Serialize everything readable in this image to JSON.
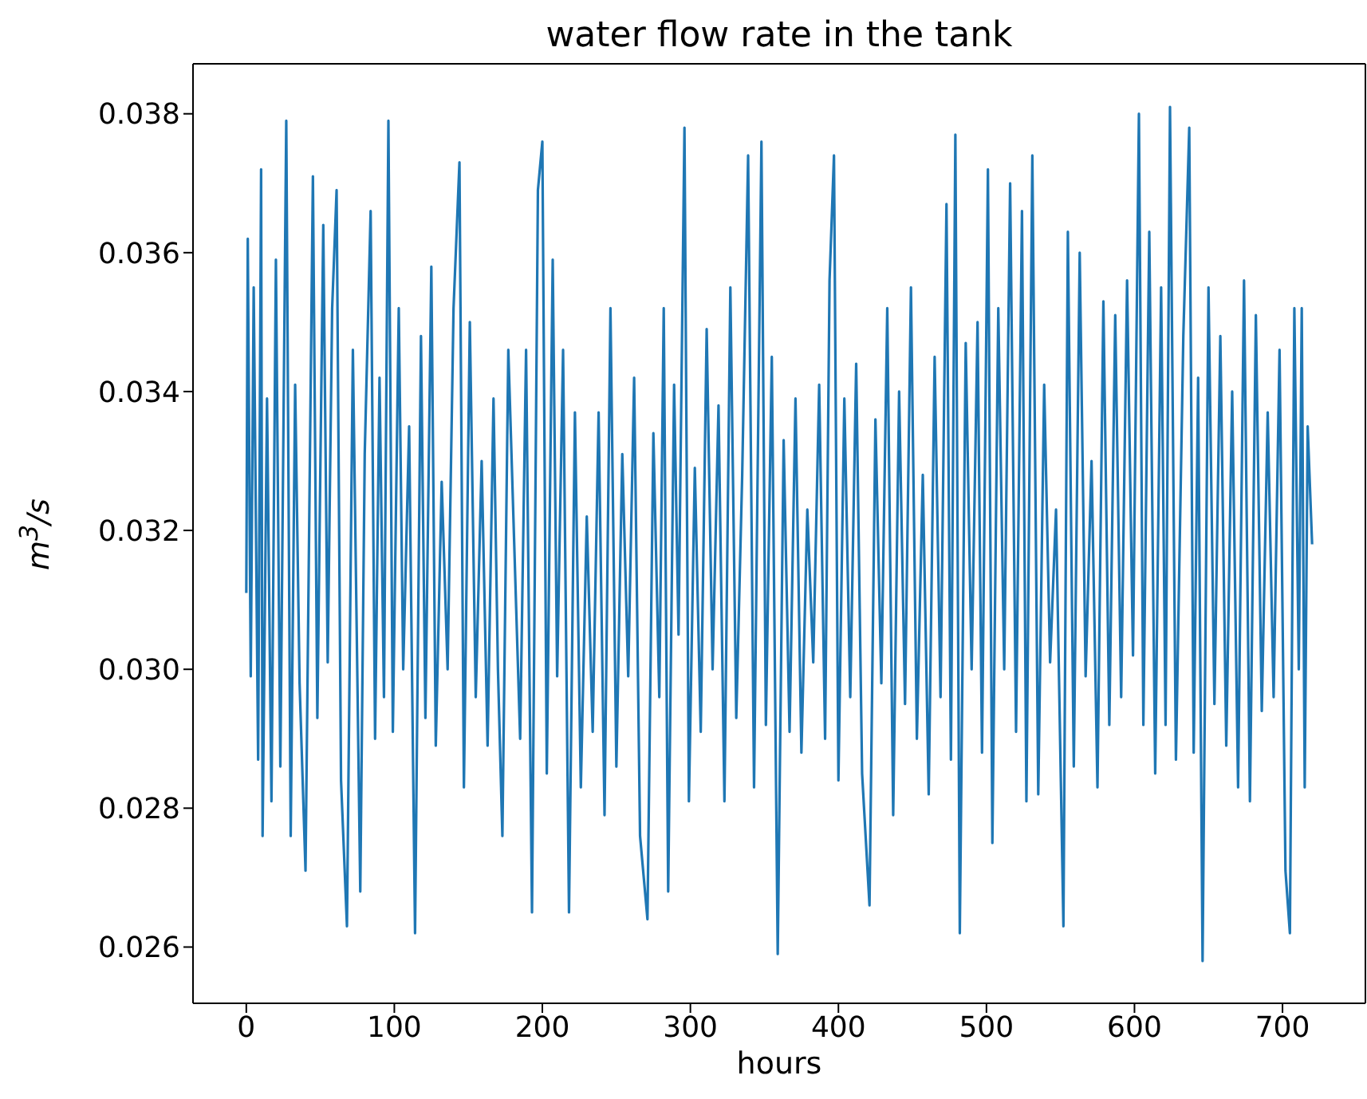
{
  "chart_data": {
    "type": "line",
    "title": "water flow rate in the tank",
    "xlabel": "hours",
    "ylabel": "m$^{3}$/s",
    "xlim": [
      -36,
      756
    ],
    "xticks": [
      0,
      100,
      200,
      300,
      400,
      500,
      600,
      700
    ],
    "ylim": [
      0.02519,
      0.03872
    ],
    "yticks": [
      {
        "value": 0.026,
        "label": "0.026"
      },
      {
        "value": 0.028,
        "label": "0.028"
      },
      {
        "value": 0.03,
        "label": "0.030"
      },
      {
        "value": 0.032,
        "label": "0.032"
      },
      {
        "value": 0.034,
        "label": "0.034"
      },
      {
        "value": 0.036,
        "label": "0.036"
      },
      {
        "value": 0.038,
        "label": "0.038"
      }
    ],
    "marker": "none",
    "line_style": "solid",
    "series": [
      {
        "color": "#1f77b4",
        "x": [
          0,
          1,
          3,
          5,
          8,
          10,
          11,
          14,
          17,
          20,
          23,
          27,
          30,
          33,
          36,
          40,
          45,
          48,
          52,
          55,
          58,
          61,
          64,
          68,
          72,
          77,
          80,
          84,
          87,
          90,
          93,
          96,
          99,
          103,
          106,
          110,
          114,
          118,
          121,
          125,
          128,
          132,
          136,
          140,
          144,
          147,
          151,
          155,
          159,
          163,
          167,
          170,
          173,
          177,
          181,
          185,
          189,
          193,
          197,
          200,
          203,
          207,
          210,
          214,
          218,
          222,
          226,
          230,
          234,
          238,
          242,
          246,
          250,
          254,
          258,
          262,
          266,
          271,
          275,
          279,
          282,
          285,
          289,
          292,
          296,
          299,
          303,
          307,
          311,
          315,
          319,
          323,
          327,
          331,
          335,
          339,
          343,
          348,
          351,
          355,
          359,
          363,
          367,
          371,
          375,
          379,
          383,
          387,
          391,
          394,
          397,
          400,
          404,
          408,
          412,
          416,
          421,
          425,
          429,
          433,
          437,
          441,
          445,
          449,
          453,
          457,
          461,
          465,
          469,
          473,
          476,
          479,
          482,
          486,
          490,
          494,
          497,
          501,
          504,
          508,
          512,
          516,
          520,
          524,
          527,
          531,
          535,
          539,
          543,
          547,
          552,
          555,
          559,
          563,
          567,
          571,
          575,
          579,
          583,
          587,
          591,
          595,
          599,
          603,
          606,
          610,
          614,
          618,
          621,
          624,
          628,
          633,
          637,
          640,
          643,
          646,
          650,
          654,
          658,
          662,
          666,
          670,
          674,
          678,
          682,
          686,
          690,
          694,
          698,
          702,
          705,
          708,
          711,
          713,
          715,
          717,
          720
        ],
        "values": [
          0.0311,
          0.0362,
          0.0299,
          0.0355,
          0.0287,
          0.0372,
          0.0276,
          0.0339,
          0.0281,
          0.0359,
          0.0286,
          0.0379,
          0.0276,
          0.0341,
          0.0298,
          0.0271,
          0.0371,
          0.0293,
          0.0364,
          0.0301,
          0.0352,
          0.0369,
          0.0284,
          0.0263,
          0.0346,
          0.0268,
          0.0331,
          0.0366,
          0.029,
          0.0342,
          0.0296,
          0.0379,
          0.0291,
          0.0352,
          0.03,
          0.0335,
          0.0262,
          0.0348,
          0.0293,
          0.0358,
          0.0289,
          0.0327,
          0.03,
          0.0352,
          0.0373,
          0.0283,
          0.035,
          0.0296,
          0.033,
          0.0289,
          0.0339,
          0.03,
          0.0276,
          0.0346,
          0.0318,
          0.029,
          0.0346,
          0.0265,
          0.0369,
          0.0376,
          0.0285,
          0.0359,
          0.0299,
          0.0346,
          0.0265,
          0.0337,
          0.0283,
          0.0322,
          0.0291,
          0.0337,
          0.0279,
          0.0352,
          0.0286,
          0.0331,
          0.0299,
          0.0342,
          0.0276,
          0.0264,
          0.0334,
          0.0296,
          0.0352,
          0.0268,
          0.0341,
          0.0305,
          0.0378,
          0.0281,
          0.0329,
          0.0291,
          0.0349,
          0.03,
          0.0338,
          0.0281,
          0.0355,
          0.0293,
          0.0328,
          0.0374,
          0.0283,
          0.0376,
          0.0292,
          0.0345,
          0.0259,
          0.0333,
          0.0291,
          0.0339,
          0.0288,
          0.0323,
          0.0301,
          0.0341,
          0.029,
          0.0356,
          0.0374,
          0.0284,
          0.0339,
          0.0296,
          0.0344,
          0.0285,
          0.0266,
          0.0336,
          0.0298,
          0.0352,
          0.0279,
          0.034,
          0.0295,
          0.0355,
          0.029,
          0.0328,
          0.0282,
          0.0345,
          0.0296,
          0.0367,
          0.0287,
          0.0377,
          0.0262,
          0.0347,
          0.03,
          0.035,
          0.0288,
          0.0372,
          0.0275,
          0.0352,
          0.03,
          0.037,
          0.0291,
          0.0366,
          0.0281,
          0.0374,
          0.0282,
          0.0341,
          0.0301,
          0.0323,
          0.0263,
          0.0363,
          0.0286,
          0.036,
          0.0299,
          0.033,
          0.0283,
          0.0353,
          0.0292,
          0.0351,
          0.0296,
          0.0356,
          0.0302,
          0.038,
          0.0292,
          0.0363,
          0.0285,
          0.0355,
          0.0292,
          0.0381,
          0.0287,
          0.0348,
          0.0378,
          0.0288,
          0.0342,
          0.0258,
          0.0355,
          0.0295,
          0.0348,
          0.0289,
          0.034,
          0.0283,
          0.0356,
          0.0281,
          0.0351,
          0.0294,
          0.0337,
          0.0296,
          0.0346,
          0.0271,
          0.0262,
          0.0352,
          0.03,
          0.0352,
          0.0283,
          0.0335,
          0.0318
        ]
      }
    ]
  }
}
